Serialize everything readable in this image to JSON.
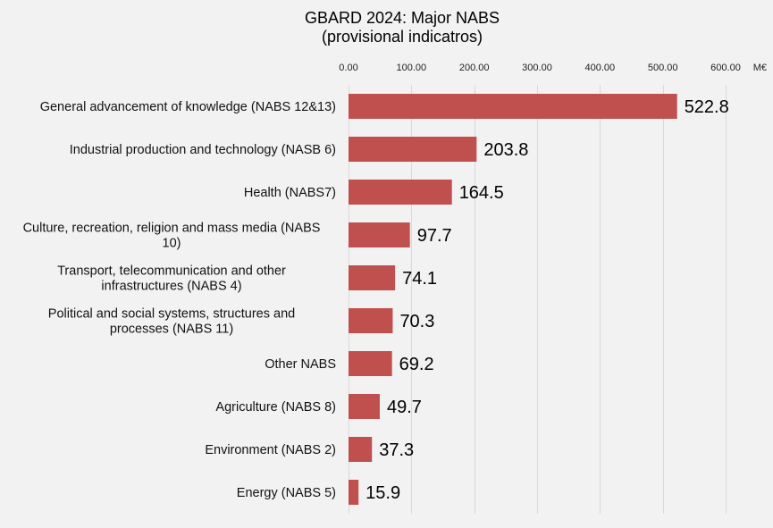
{
  "chart_data": {
    "type": "bar",
    "orientation": "horizontal",
    "title": "GBARD 2024: Major NABS",
    "subtitle": "(provisional indicatros)",
    "xlabel": "M€",
    "ylabel": "",
    "xlim": [
      0,
      600
    ],
    "x_ticks": [
      "0.00",
      "100.00",
      "200.00",
      "300.00",
      "400.00",
      "500.00",
      "600.00"
    ],
    "x_tick_values": [
      0,
      100,
      200,
      300,
      400,
      500,
      600
    ],
    "x_axis_position": "top",
    "grid": true,
    "bar_color": "#c0504d",
    "categories": [
      [
        "General advancement of knowledge (NABS 12&13)"
      ],
      [
        "Industrial production and technology (NASB 6)"
      ],
      [
        "Health (NABS7)"
      ],
      [
        "Culture, recreation, religion and mass media (NABS",
        "10)"
      ],
      [
        "Transport, telecommunication and other",
        "infrastructures (NABS 4)"
      ],
      [
        "Political and social systems, structures and",
        "processes (NABS 11)"
      ],
      [
        "Other NABS"
      ],
      [
        "Agriculture (NABS 8)"
      ],
      [
        "Environment (NABS 2)"
      ],
      [
        "Energy (NABS 5)"
      ]
    ],
    "values": [
      522.8,
      203.8,
      164.5,
      97.7,
      74.1,
      70.3,
      69.2,
      49.7,
      37.3,
      15.9
    ],
    "data_labels": [
      "522.8",
      "203.8",
      "164.5",
      "97.7",
      "74.1",
      "70.3",
      "69.2",
      "49.7",
      "37.3",
      "15.9"
    ]
  }
}
